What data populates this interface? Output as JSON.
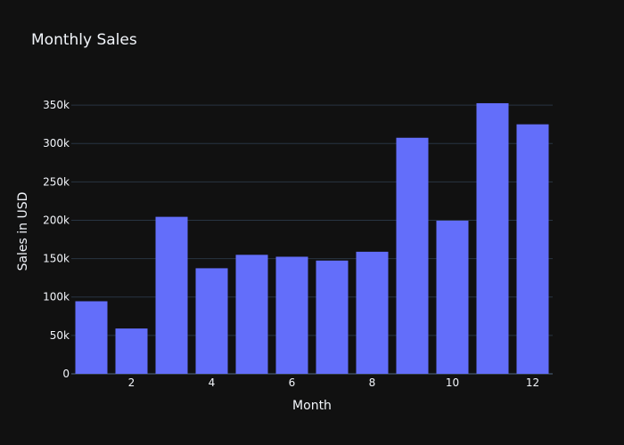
{
  "chart_data": {
    "type": "bar",
    "title": "Monthly Sales",
    "xlabel": "Month",
    "ylabel": "Sales in USD",
    "x": [
      1,
      2,
      3,
      4,
      5,
      6,
      7,
      8,
      9,
      10,
      11,
      12
    ],
    "values": [
      94500,
      59000,
      204500,
      137500,
      155000,
      152500,
      147500,
      159000,
      307500,
      199500,
      352500,
      325000
    ],
    "xticks": [
      2,
      4,
      6,
      8,
      10,
      12
    ],
    "xtick_labels": [
      "2",
      "4",
      "6",
      "8",
      "10",
      "12"
    ],
    "yticks": [
      0,
      50000,
      100000,
      150000,
      200000,
      250000,
      300000,
      350000
    ],
    "ytick_labels": [
      "0",
      "50k",
      "100k",
      "150k",
      "200k",
      "250k",
      "300k",
      "350k"
    ],
    "ylim": [
      0,
      371000
    ],
    "xlim": [
      0.5,
      12.5
    ],
    "grid": true,
    "bar_color": "#636efa",
    "background": "#111111"
  }
}
